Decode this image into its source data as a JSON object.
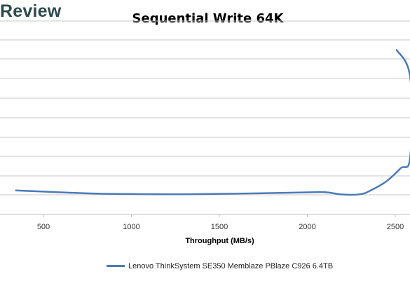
{
  "brand": {
    "logo_text": "Review"
  },
  "chart_data": {
    "type": "line",
    "title": "Sequential Write 64K",
    "xlabel": "Throughput (MB/s)",
    "ylabel": "",
    "xlim": [
      0,
      2590
    ],
    "x_ticks": [
      500,
      1000,
      1500,
      2000,
      2500
    ],
    "grid": true,
    "legend_position": "bottom",
    "series": [
      {
        "name": "Lenovo ThinkSystem SE350 Memblaze PBlaze C926 6.4TB",
        "color": "#4a7ab8",
        "points": [
          [
            340,
            0.112
          ],
          [
            600,
            0.103
          ],
          [
            800,
            0.097
          ],
          [
            1000,
            0.095
          ],
          [
            1250,
            0.094
          ],
          [
            1500,
            0.096
          ],
          [
            1750,
            0.099
          ],
          [
            2000,
            0.103
          ],
          [
            2100,
            0.104
          ],
          [
            2200,
            0.093
          ],
          [
            2300,
            0.094
          ],
          [
            2360,
            0.112
          ],
          [
            2450,
            0.155
          ],
          [
            2530,
            0.215
          ],
          [
            2585,
            0.268
          ],
          [
            2585,
            0.64
          ],
          [
            2505,
            0.77
          ]
        ]
      }
    ]
  }
}
